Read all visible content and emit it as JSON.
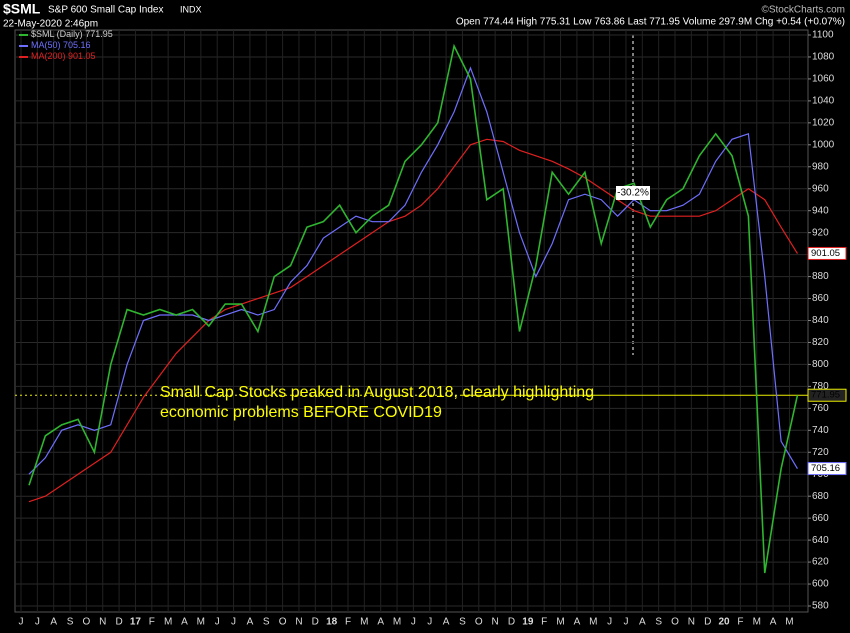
{
  "chart_data": {
    "type": "line",
    "title": "$SML",
    "subtitle": "S&P 600 Small Cap Index",
    "exchange": "INDX",
    "date": "22-May-2020 2:46pm",
    "source": "©StockCharts.com",
    "quote": "Open 774.44 High 775.31 Low 763.86 Last 771.95 Volume 297.9M Chg +0.54 (+0.07%)",
    "categories": [
      "J",
      "J",
      "A",
      "S",
      "O",
      "N",
      "D",
      "17",
      "F",
      "M",
      "A",
      "M",
      "J",
      "J",
      "A",
      "S",
      "O",
      "N",
      "D",
      "18",
      "F",
      "M",
      "A",
      "M",
      "J",
      "J",
      "A",
      "S",
      "O",
      "N",
      "D",
      "19",
      "F",
      "M",
      "A",
      "M",
      "J",
      "J",
      "A",
      "S",
      "O",
      "N",
      "D",
      "20",
      "F",
      "M",
      "A",
      "M"
    ],
    "series": [
      {
        "name": "$SML (Daily)",
        "legend_value": 771.95,
        "color": "#2fb52f",
        "values": [
          690,
          735,
          745,
          750,
          720,
          800,
          850,
          845,
          850,
          845,
          850,
          835,
          855,
          855,
          830,
          880,
          890,
          925,
          930,
          945,
          920,
          935,
          945,
          985,
          1000,
          1020,
          1090,
          1060,
          950,
          960,
          830,
          890,
          975,
          955,
          975,
          910,
          960,
          965,
          925,
          950,
          960,
          990,
          1010,
          990,
          935,
          610,
          705,
          772
        ]
      },
      {
        "name": "MA(50)",
        "legend_value": 705.16,
        "color": "#6f6fff",
        "values": [
          700,
          715,
          740,
          745,
          740,
          745,
          800,
          840,
          845,
          845,
          845,
          840,
          845,
          850,
          845,
          850,
          875,
          890,
          915,
          925,
          935,
          930,
          930,
          945,
          975,
          1000,
          1030,
          1070,
          1030,
          975,
          920,
          880,
          910,
          950,
          955,
          950,
          935,
          950,
          940,
          940,
          945,
          955,
          985,
          1005,
          1010,
          880,
          730,
          705
        ]
      },
      {
        "name": "MA(200)",
        "legend_value": 901.05,
        "color": "#e02020",
        "values": [
          675,
          680,
          690,
          700,
          710,
          720,
          745,
          770,
          790,
          810,
          825,
          840,
          850,
          855,
          860,
          865,
          870,
          880,
          890,
          900,
          910,
          920,
          930,
          935,
          945,
          960,
          980,
          1000,
          1005,
          1003,
          995,
          990,
          985,
          978,
          970,
          960,
          950,
          940,
          935,
          935,
          935,
          935,
          940,
          950,
          960,
          950,
          925,
          901
        ]
      }
    ],
    "price_tags": [
      901.05,
      771.95,
      705.16
    ],
    "last": 771.95,
    "ylim": [
      580,
      1100
    ],
    "yticks": [
      580,
      600,
      620,
      640,
      660,
      680,
      700,
      720,
      740,
      760,
      780,
      800,
      820,
      840,
      860,
      880,
      900,
      920,
      940,
      960,
      980,
      1000,
      1020,
      1040,
      1060,
      1080,
      1100
    ],
    "grid": true,
    "annotations": [
      "Small Cap Stocks peaked in August 2018, clearly highlighting",
      "economic problems BEFORE COVID19"
    ],
    "change_label": "-30.2%"
  }
}
